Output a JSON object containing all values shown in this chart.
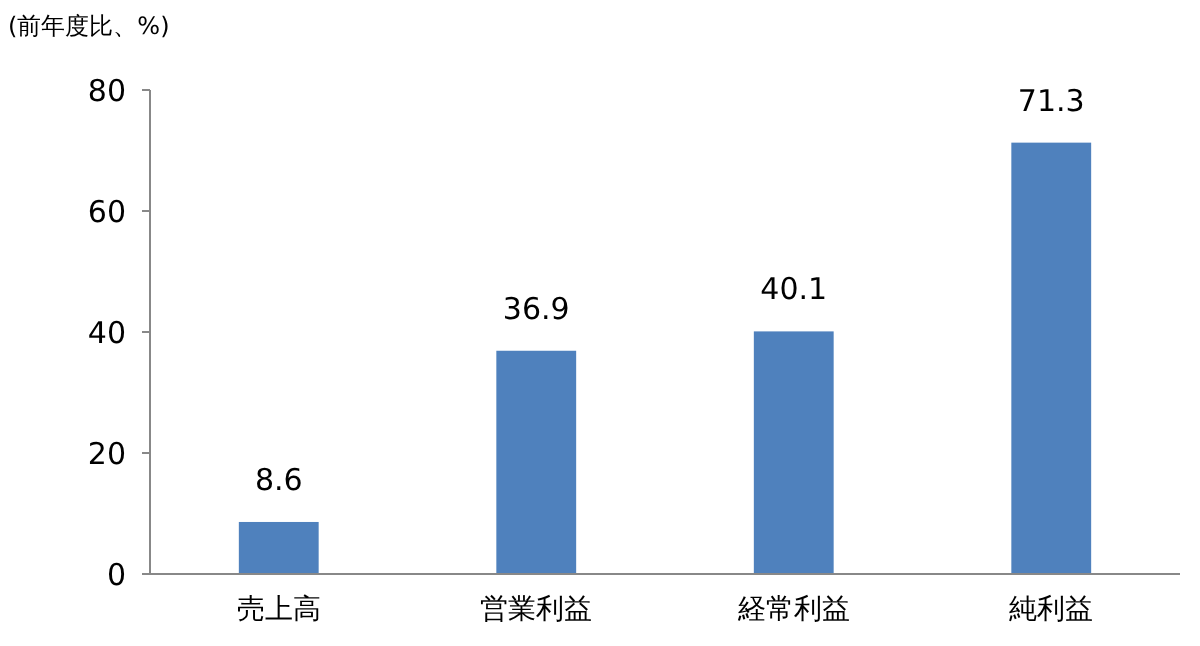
{
  "chart_data": {
    "type": "bar",
    "ylabel": "(前年度比、%)",
    "categories": [
      "売上高",
      "営業利益",
      "経常利益",
      "純利益"
    ],
    "values": [
      8.6,
      36.9,
      40.1,
      71.3
    ],
    "color": "#4f81bd",
    "ylim": [
      0,
      80
    ],
    "yticks": [
      0,
      20,
      40,
      60,
      80
    ],
    "data_labels": true,
    "grid": false
  }
}
